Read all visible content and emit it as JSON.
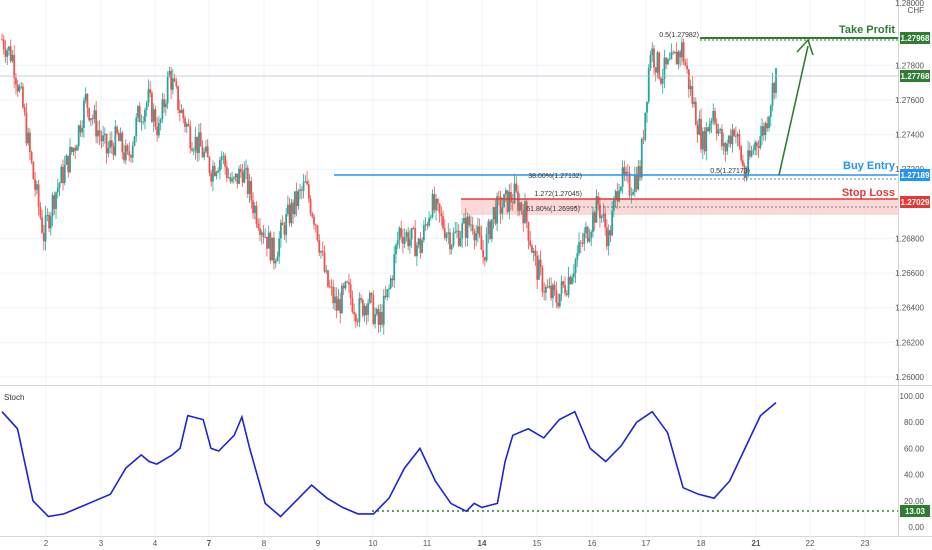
{
  "instrument": {
    "line1": "1.28000",
    "line2": "CHF"
  },
  "labels": {
    "take_profit": "Take Profit",
    "buy_entry": "Buy Entry",
    "stop_loss": "Stop Loss",
    "stoch_title": "Stoch"
  },
  "tags": {
    "take_profit": "1.27968",
    "last_price": "1.27768",
    "buy_entry": "1.27189",
    "stop_loss": "1.27029",
    "stoch_value": "13.03"
  },
  "annotations": {
    "fib_top": "0.5(1.27982)",
    "fib_entry": "0.5(1.27173)",
    "fib_382": "38.00%(1.27132)",
    "fib_1272": "1.272(1.27045)",
    "fib_618": "61.80%(1.26995)"
  },
  "colors": {
    "up": "#26a69a",
    "down": "#ef5350",
    "take_profit": "#2e7d32",
    "buy_entry": "#2196f3",
    "stop_loss": "#e53935",
    "stoch_line": "#1e22d6",
    "sl_zone": "#f8bfbf"
  },
  "chart_data": [
    {
      "type": "candlestick",
      "title": "",
      "y_ticks": [
        "1.27800",
        "1.27600",
        "1.27400",
        "1.27200",
        "1.26800",
        "1.26600",
        "1.26400",
        "1.26200",
        "1.26000"
      ],
      "ylim": [
        1.2592,
        1.2823
      ],
      "x_ticks": [
        "2",
        "3",
        "4",
        "7",
        "8",
        "9",
        "10",
        "11",
        "14",
        "15",
        "16",
        "17",
        "18",
        "21",
        "22",
        "23"
      ],
      "close_path": [
        1.2795,
        1.2785,
        1.2755,
        1.2715,
        1.2682,
        1.2705,
        1.272,
        1.2735,
        1.276,
        1.2745,
        1.273,
        1.2738,
        1.2725,
        1.275,
        1.276,
        1.2742,
        1.2775,
        1.2755,
        1.274,
        1.2732,
        1.272,
        1.2728,
        1.271,
        1.272,
        1.27,
        1.2685,
        1.267,
        1.2688,
        1.27,
        1.271,
        1.269,
        1.2655,
        1.264,
        1.265,
        1.2638,
        1.2645,
        1.263,
        1.265,
        1.2685,
        1.268,
        1.2675,
        1.27,
        1.269,
        1.268,
        1.2685,
        1.269,
        1.267,
        1.2695,
        1.27,
        1.2705,
        1.2695,
        1.2665,
        1.265,
        1.2645,
        1.2655,
        1.267,
        1.2685,
        1.27,
        1.268,
        1.2715,
        1.271,
        1.2719,
        1.279,
        1.2775,
        1.278,
        1.279,
        1.276,
        1.2735,
        1.2755,
        1.273,
        1.2745,
        1.2717,
        1.2735,
        1.2745,
        1.2777
      ],
      "levels": {
        "take_profit": 1.27968,
        "last_price": 1.27768,
        "buy_entry": 1.27189,
        "stop_loss": 1.27029,
        "sl_zone": [
          1.26955,
          1.27045
        ]
      }
    },
    {
      "type": "line",
      "title": "Stoch",
      "y_ticks": [
        "100.00",
        "80.00",
        "60.00",
        "40.00",
        "20.00",
        "0.00"
      ],
      "ylim": [
        0,
        100
      ],
      "x": [
        0,
        2,
        4,
        6,
        8,
        10,
        12,
        14,
        16,
        18,
        19,
        20,
        22,
        23,
        24,
        26,
        27,
        28,
        30,
        31,
        32,
        34,
        36,
        38,
        40,
        42,
        44,
        46,
        48,
        50,
        52,
        54,
        56,
        58,
        59,
        60,
        61,
        62,
        64,
        65,
        66,
        68,
        70,
        72,
        74,
        76,
        78,
        80,
        82,
        84,
        86,
        88,
        90,
        92,
        94,
        96,
        98,
        100
      ],
      "values": [
        88,
        75,
        20,
        8,
        10,
        15,
        20,
        25,
        45,
        55,
        50,
        48,
        55,
        60,
        85,
        82,
        60,
        58,
        70,
        84,
        60,
        18,
        8,
        20,
        32,
        22,
        15,
        10,
        10,
        22,
        45,
        60,
        35,
        18,
        15,
        12,
        18,
        15,
        18,
        50,
        70,
        75,
        68,
        82,
        88,
        60,
        50,
        62,
        80,
        88,
        72,
        30,
        25,
        22,
        35,
        60,
        85,
        95
      ],
      "reference_level": 13.03
    }
  ]
}
